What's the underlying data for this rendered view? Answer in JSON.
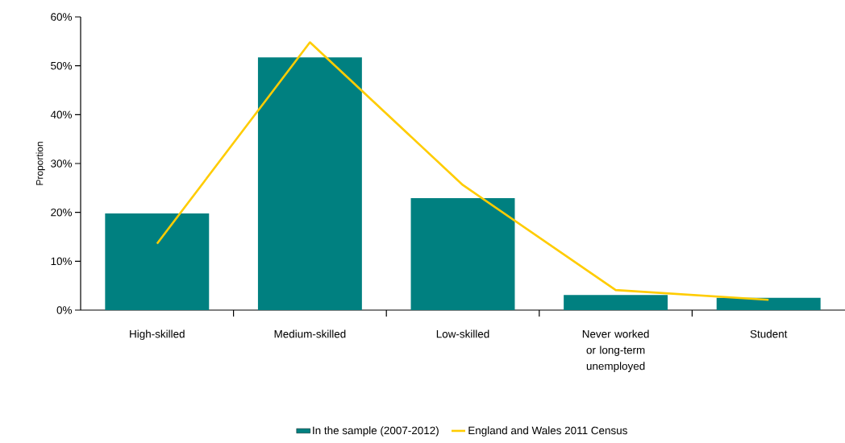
{
  "chart_data": {
    "type": "bar",
    "ylabel": "Proportion",
    "categories": [
      "High-skilled",
      "Medium-skilled",
      "Low-skilled",
      "Never worked or long-term unemployed",
      "Student"
    ],
    "series": [
      {
        "name": "In the sample (2007-2012)",
        "color": "#008080",
        "values": [
          19.8,
          51.7,
          22.9,
          3.1,
          2.5
        ]
      },
      {
        "name": "England and Wales 2011 Census",
        "type": "line",
        "color": "#ffcc00",
        "marker": "none",
        "line_style": "solid",
        "values": [
          13.6,
          54.8,
          25.6,
          4.1,
          2.1
        ]
      }
    ],
    "ylim": [
      0,
      60
    ],
    "yticks": [
      {
        "value": 0,
        "label": "0%"
      },
      {
        "value": 10,
        "label": "10%"
      },
      {
        "value": 20,
        "label": "20%"
      },
      {
        "value": 30,
        "label": "30%"
      },
      {
        "value": 40,
        "label": "40%"
      },
      {
        "value": 50,
        "label": "50%"
      },
      {
        "value": 60,
        "label": "60%"
      }
    ],
    "grid": false,
    "legend": "bottom"
  }
}
